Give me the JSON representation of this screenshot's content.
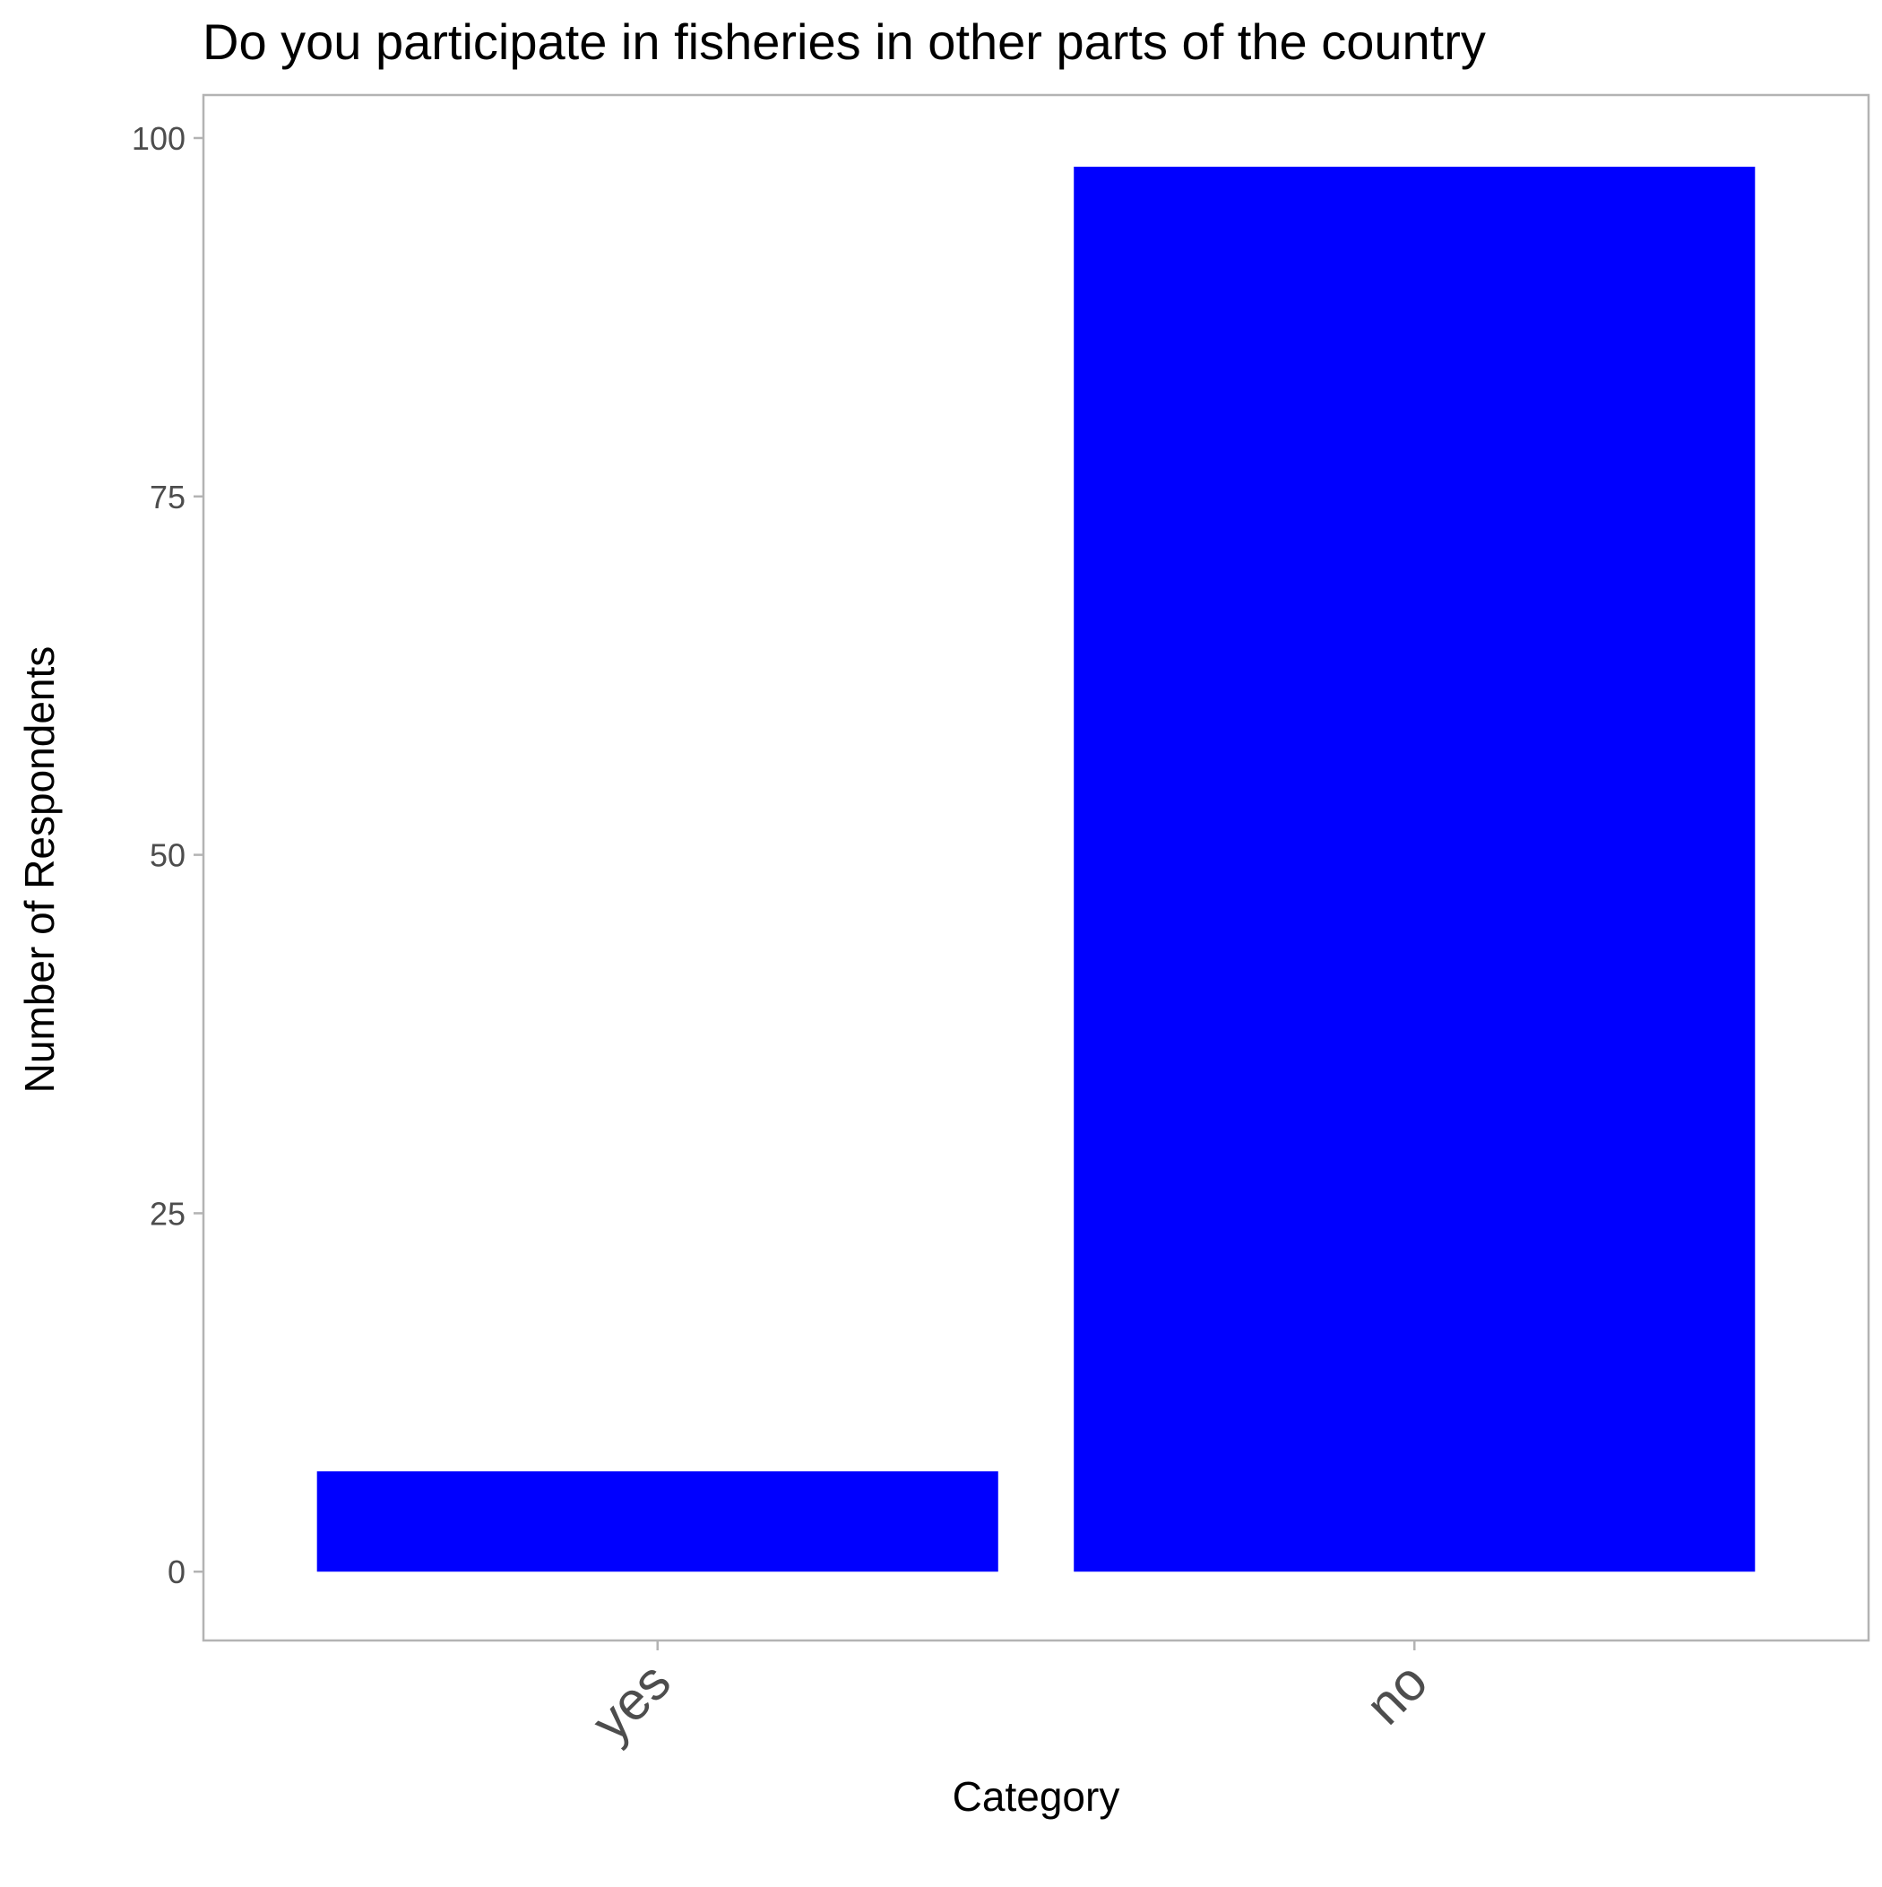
{
  "chart_data": {
    "type": "bar",
    "title": "Do you participate in fisheries in other parts of the country",
    "xlabel": "Category",
    "ylabel": "Number of Respondents",
    "categories": [
      "yes",
      "no"
    ],
    "values": [
      7,
      98
    ],
    "ylim": [
      -4.8,
      103
    ],
    "yticks": [
      0,
      25,
      50,
      75,
      100
    ],
    "ytick_labels": [
      "0",
      "25",
      "50",
      "75",
      "100"
    ],
    "grid": false,
    "legend": "none",
    "colors": {
      "bar": "#0000ff",
      "panel_border": "#b3b3b3",
      "tick": "#b3b3b3",
      "tick_label": "#4d4d4d",
      "text": "#000000"
    }
  }
}
